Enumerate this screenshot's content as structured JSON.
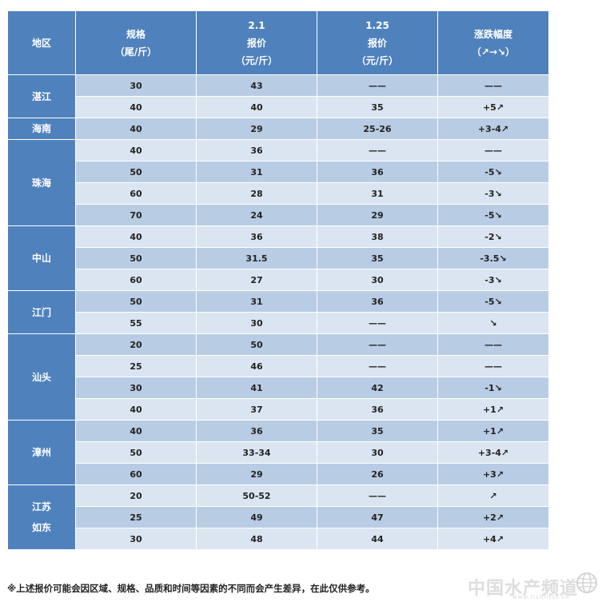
{
  "header": {
    "region": "地区",
    "spec": [
      "规格",
      "（尾/斤）"
    ],
    "date1": [
      "2.1",
      "报价",
      "（元/斤）"
    ],
    "date2": [
      "1.25",
      "报价",
      "（元/斤）"
    ],
    "change": [
      "涨跌幅度",
      "（↗→↘）"
    ]
  },
  "groups": [
    {
      "region": [
        "湛江"
      ],
      "rows": [
        {
          "spec": "30",
          "p1": "43",
          "p2": "——",
          "chg": "——",
          "dir": "flat"
        },
        {
          "spec": "40",
          "p1": "40",
          "p2": "35",
          "chg": "+5↗",
          "dir": "up"
        }
      ]
    },
    {
      "region": [
        "海南"
      ],
      "rows": [
        {
          "spec": "40",
          "p1": "29",
          "p2": "25-26",
          "chg": "+3-4↗",
          "dir": "up"
        }
      ]
    },
    {
      "region": [
        "珠海"
      ],
      "rows": [
        {
          "spec": "40",
          "p1": "36",
          "p2": "——",
          "chg": "——",
          "dir": "flat"
        },
        {
          "spec": "50",
          "p1": "31",
          "p2": "36",
          "chg": "-5↘",
          "dir": "down"
        },
        {
          "spec": "60",
          "p1": "28",
          "p2": "31",
          "chg": "-3↘",
          "dir": "down"
        },
        {
          "spec": "70",
          "p1": "24",
          "p2": "29",
          "chg": "-5↘",
          "dir": "down"
        }
      ]
    },
    {
      "region": [
        "中山"
      ],
      "rows": [
        {
          "spec": "40",
          "p1": "36",
          "p2": "38",
          "chg": "-2↘",
          "dir": "down"
        },
        {
          "spec": "50",
          "p1": "31.5",
          "p2": "35",
          "chg": "-3.5↘",
          "dir": "down"
        },
        {
          "spec": "60",
          "p1": "27",
          "p2": "30",
          "chg": "-3↘",
          "dir": "down"
        }
      ]
    },
    {
      "region": [
        "江门"
      ],
      "rows": [
        {
          "spec": "50",
          "p1": "31",
          "p2": "36",
          "chg": "-5↘",
          "dir": "down"
        },
        {
          "spec": "55",
          "p1": "30",
          "p2": "——",
          "chg": "↘",
          "dir": "down"
        }
      ]
    },
    {
      "region": [
        "汕头"
      ],
      "rows": [
        {
          "spec": "20",
          "p1": "50",
          "p2": "——",
          "chg": "——",
          "dir": "flat"
        },
        {
          "spec": "25",
          "p1": "46",
          "p2": "——",
          "chg": "——",
          "dir": "flat"
        },
        {
          "spec": "30",
          "p1": "41",
          "p2": "42",
          "chg": "-1↘",
          "dir": "down"
        },
        {
          "spec": "40",
          "p1": "37",
          "p2": "36",
          "chg": "+1↗",
          "dir": "up"
        }
      ]
    },
    {
      "region": [
        "漳州"
      ],
      "rows": [
        {
          "spec": "40",
          "p1": "36",
          "p2": "35",
          "chg": "+1↗",
          "dir": "up"
        },
        {
          "spec": "50",
          "p1": "33-34",
          "p2": "30",
          "chg": "+3-4↗",
          "dir": "up"
        },
        {
          "spec": "60",
          "p1": "29",
          "p2": "26",
          "chg": "+3↗",
          "dir": "up"
        }
      ]
    },
    {
      "region": [
        "江苏",
        "如东"
      ],
      "rows": [
        {
          "spec": "20",
          "p1": "50-52",
          "p2": "——",
          "chg": "↗",
          "dir": "up"
        },
        {
          "spec": "25",
          "p1": "49",
          "p2": "47",
          "chg": "+2↗",
          "dir": "up"
        },
        {
          "spec": "30",
          "p1": "48",
          "p2": "44",
          "chg": "+4↗",
          "dir": "up"
        }
      ]
    }
  ],
  "footer": "※上述报价可能会因区域、规格、品质和时间等因素的不同而会产生差异，在此仅供参考。",
  "watermark": {
    "logo_text": "中国水产频道",
    "url": "www.fishfirst.cn",
    "icon": "globe-icon"
  },
  "colors": {
    "header_bg": "#4f81bd",
    "row_dark": "#b8cce4",
    "row_light": "#dbe5f1",
    "up": "#e00000",
    "down": "#4f7f2a"
  }
}
